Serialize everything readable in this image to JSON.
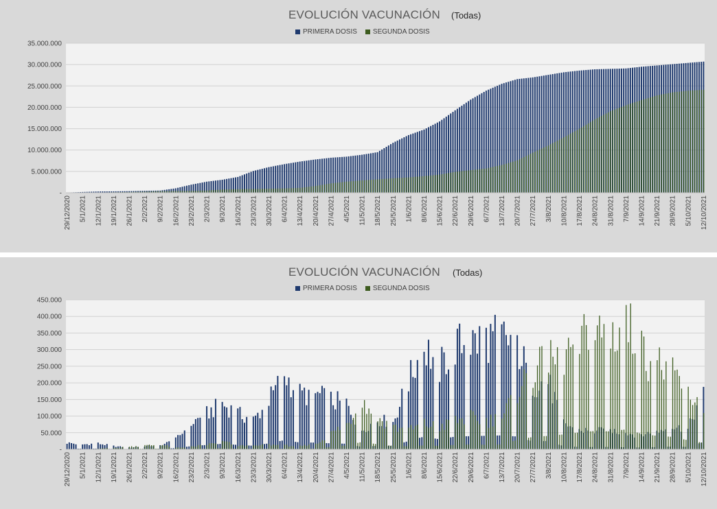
{
  "colors": {
    "primera": "#1f3a6e",
    "segunda": "#3d5c1f",
    "plot_bg": "#f2f2f2",
    "panel_bg": "#d9d9d9",
    "grid": "#d0d0d0"
  },
  "chart_data": [
    {
      "type": "bar",
      "title": "EVOLUCIÓN VACUNACIÓN",
      "subtitle": "(Todas)",
      "cumulative": true,
      "ylim": [
        0,
        35000000
      ],
      "yticks": [
        0,
        5000000,
        10000000,
        15000000,
        20000000,
        25000000,
        30000000,
        35000000
      ],
      "ytick_labels": [
        "-",
        "5.000.000",
        "10.000.000",
        "15.000.000",
        "20.000.000",
        "25.000.000",
        "30.000.000",
        "35.000.000"
      ],
      "x_start": "29/12/2020",
      "x_end": "12/10/2021",
      "xtick_labels": [
        "29/12/2020",
        "5/1/2021",
        "12/1/2021",
        "19/1/2021",
        "26/1/2021",
        "2/2/2021",
        "9/2/2021",
        "16/2/2021",
        "23/2/2021",
        "2/3/2021",
        "9/3/2021",
        "16/3/2021",
        "23/3/2021",
        "30/3/2021",
        "6/4/2021",
        "13/4/2021",
        "20/4/2021",
        "27/4/2021",
        "4/5/2021",
        "11/5/2021",
        "18/5/2021",
        "25/5/2021",
        "1/6/2021",
        "8/6/2021",
        "15/6/2021",
        "22/6/2021",
        "29/6/2021",
        "6/7/2021",
        "13/7/2021",
        "20/7/2021",
        "27/7/2021",
        "3/8/2021",
        "10/8/2021",
        "17/8/2021",
        "24/8/2021",
        "31/8/2021",
        "7/9/2021",
        "14/9/2021",
        "21/9/2021",
        "28/9/2021",
        "5/10/2021",
        "12/10/2021"
      ],
      "legend": [
        "PRIMERA DOSIS",
        "SEGUNDA DOSIS"
      ],
      "legend_position": "top",
      "grid": true,
      "series": [
        {
          "name": "PRIMERA DOSIS",
          "values": [
            50000,
            180000,
            300000,
            330000,
            380000,
            460000,
            520000,
            1050000,
            1900000,
            2600000,
            3050000,
            3700000,
            5100000,
            6000000,
            6700000,
            7300000,
            7800000,
            8200000,
            8450000,
            8900000,
            9500000,
            11700000,
            13500000,
            14800000,
            16700000,
            19300000,
            21800000,
            23900000,
            25500000,
            26600000,
            27000000,
            27600000,
            28200000,
            28600000,
            28900000,
            29000000,
            29100000,
            29500000,
            29800000,
            30100000,
            30400000,
            30700000
          ]
        },
        {
          "name": "SEGUNDA DOSIS",
          "values": [
            0,
            10000,
            40000,
            130000,
            180000,
            270000,
            380000,
            430000,
            450000,
            540000,
            750000,
            850000,
            900000,
            960000,
            1030000,
            1150000,
            1600000,
            2200000,
            2600000,
            2900000,
            3150000,
            3400000,
            3600000,
            3900000,
            4250000,
            4900000,
            5300000,
            5700000,
            6500000,
            7600000,
            9400000,
            11100000,
            13000000,
            15000000,
            17200000,
            19100000,
            20500000,
            21700000,
            22800000,
            23500000,
            23900000,
            24100000
          ]
        }
      ]
    },
    {
      "type": "bar",
      "title": "EVOLUCIÓN VACUNACIÓN",
      "subtitle": "(Todas)",
      "cumulative": false,
      "ylim": [
        0,
        450000
      ],
      "yticks": [
        0,
        50000,
        100000,
        150000,
        200000,
        250000,
        300000,
        350000,
        400000,
        450000
      ],
      "ytick_labels": [
        "-",
        "50.000",
        "100.000",
        "150.000",
        "200.000",
        "250.000",
        "300.000",
        "350.000",
        "400.000",
        "450.000"
      ],
      "x_start": "29/12/2020",
      "x_end": "12/10/2021",
      "xtick_labels": [
        "29/12/2020",
        "5/1/2021",
        "12/1/2021",
        "19/1/2021",
        "26/1/2021",
        "2/2/2021",
        "9/2/2021",
        "16/2/2021",
        "23/2/2021",
        "2/3/2021",
        "9/3/2021",
        "16/3/2021",
        "23/3/2021",
        "30/3/2021",
        "6/4/2021",
        "13/4/2021",
        "20/4/2021",
        "27/4/2021",
        "4/5/2021",
        "11/5/2021",
        "18/5/2021",
        "25/5/2021",
        "1/6/2021",
        "8/6/2021",
        "15/6/2021",
        "22/6/2021",
        "29/6/2021",
        "6/7/2021",
        "13/7/2021",
        "20/7/2021",
        "27/7/2021",
        "3/8/2021",
        "10/8/2021",
        "17/8/2021",
        "24/8/2021",
        "31/8/2021",
        "7/9/2021",
        "14/9/2021",
        "21/9/2021",
        "28/9/2021",
        "5/10/2021",
        "12/10/2021"
      ],
      "legend": [
        "PRIMERA DOSIS",
        "SEGUNDA DOSIS"
      ],
      "legend_position": "top",
      "grid": true,
      "series": [
        {
          "name": "PRIMERA DOSIS",
          "values": [
            20000,
            15000,
            18000,
            10000,
            5000,
            10000,
            12000,
            30000,
            80000,
            110000,
            140000,
            110000,
            90000,
            150000,
            230000,
            170000,
            170000,
            150000,
            140000,
            60000,
            90000,
            85000,
            210000,
            320000,
            250000,
            320000,
            330000,
            340000,
            350000,
            320000,
            200000,
            210000,
            80000,
            60000,
            55000,
            60000,
            50000,
            45000,
            55000,
            70000,
            60000,
            185000
          ]
        },
        {
          "name": "SEGUNDA DOSIS",
          "values": [
            0,
            0,
            2000,
            5000,
            8000,
            12000,
            15000,
            5000,
            8000,
            15000,
            25000,
            12000,
            10000,
            15000,
            12000,
            10000,
            15000,
            50000,
            80000,
            150000,
            100000,
            70000,
            60000,
            80000,
            70000,
            90000,
            100000,
            90000,
            100000,
            190000,
            250000,
            270000,
            300000,
            340000,
            370000,
            360000,
            400000,
            310000,
            270000,
            250000,
            180000,
            130000
          ]
        }
      ]
    }
  ]
}
